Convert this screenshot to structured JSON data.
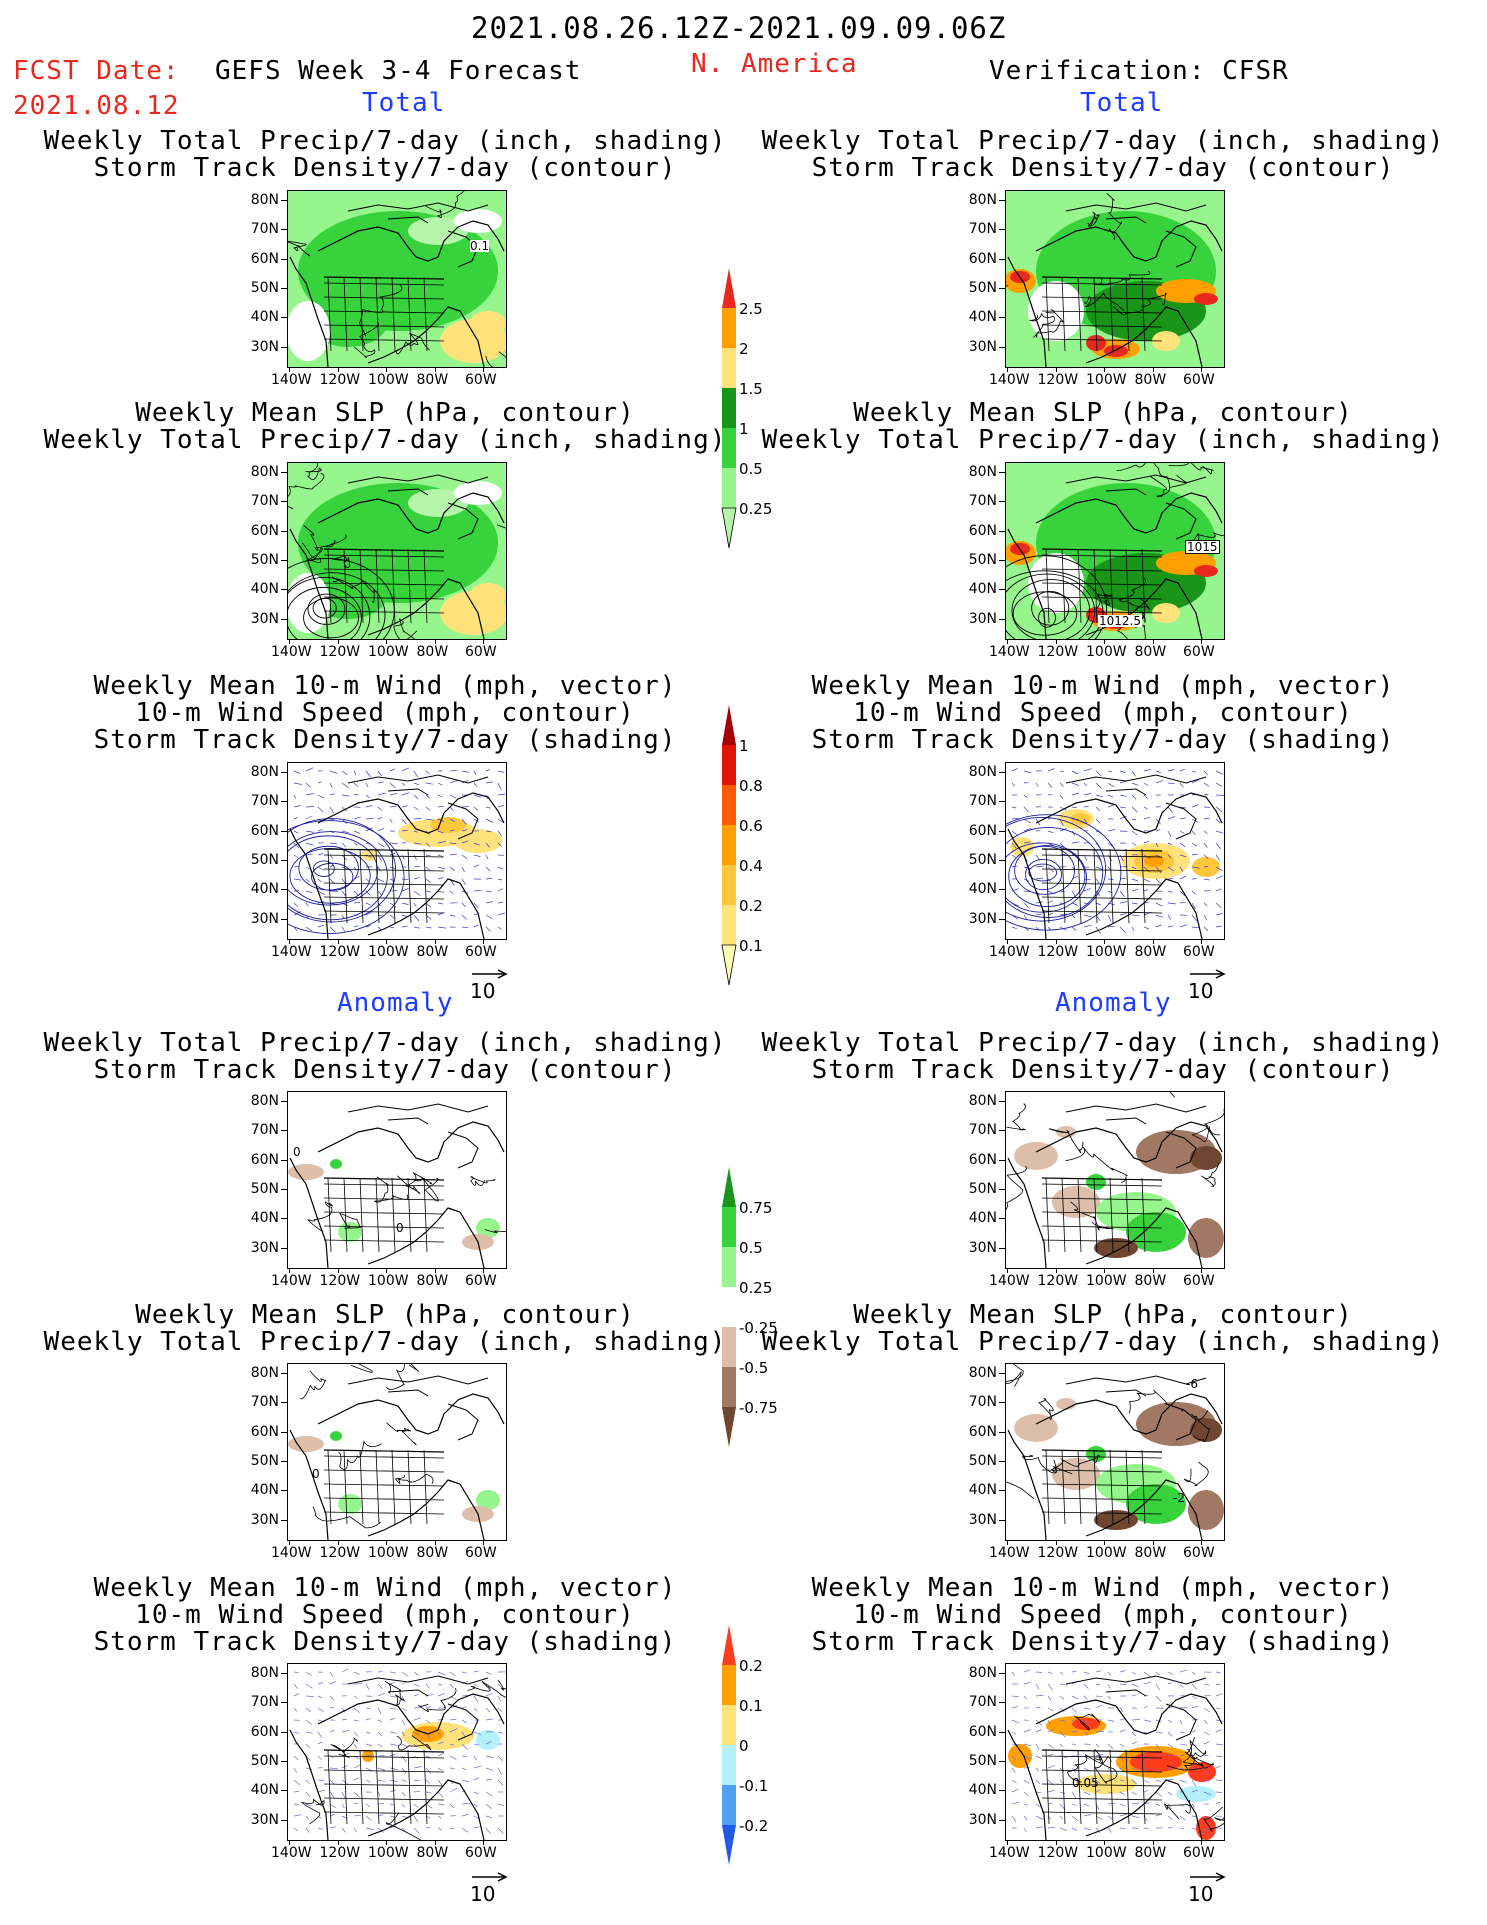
{
  "header": {
    "date_range": "2021.08.26.12Z-2021.09.09.06Z",
    "fcst_label": "FCST Date:",
    "fcst_date": "2021.08.12",
    "forecast_title": "GEFS Week 3-4 Forecast",
    "region": "N. America",
    "verification": "Verification: CFSR"
  },
  "sections": {
    "total": "Total",
    "anomaly": "Anomaly"
  },
  "panel_titles": {
    "precip_storm": [
      "Weekly Total Precip/7-day (inch, shading)",
      "Storm Track Density/7-day (contour)"
    ],
    "slp_precip": [
      "Weekly Mean SLP (hPa, contour)",
      "Weekly Total Precip/7-day (inch, shading)"
    ],
    "wind_storm": [
      "Weekly Mean 10-m Wind (mph, vector)",
      "10-m Wind Speed (mph, contour)",
      "Storm Track Density/7-day (shading)"
    ]
  },
  "axes": {
    "lat_labels": [
      "80N",
      "70N",
      "60N",
      "50N",
      "40N",
      "30N"
    ],
    "lon_labels": [
      "140W",
      "120W",
      "100W",
      "80W",
      "60W"
    ]
  },
  "vector_ref": "10",
  "contour_labels": {
    "fcst_precip_total": "0.1",
    "cfsr_slp_a": "1015",
    "cfsr_slp_b": "1012.5",
    "anom_zero": "0",
    "anom_neg": "-2",
    "anom_six": "-6",
    "anom_wind": "0.05"
  },
  "colorbars": {
    "precip_total": {
      "labels": [
        "2.5",
        "2",
        "1.5",
        "1",
        "0.5",
        "0.25"
      ],
      "colors": [
        "#e8281e",
        "#ffa000",
        "#ffe27a",
        "#199619",
        "#37d23c",
        "#96f58c",
        "#b4f5aa"
      ]
    },
    "storm_total": {
      "labels": [
        "1",
        "0.8",
        "0.6",
        "0.4",
        "0.2",
        "0.1"
      ],
      "colors": [
        "#a50000",
        "#e11400",
        "#ff5a00",
        "#ffa000",
        "#ffc83c",
        "#ffe27a",
        "#ffffb4"
      ]
    },
    "precip_anom": {
      "labels": [
        "0.75",
        "0.5",
        "0.25",
        "-0.25",
        "-0.5",
        "-0.75"
      ],
      "colors": [
        "#199619",
        "#37d23c",
        "#96f58c",
        "#ffffff",
        "#dcbeaa",
        "#a07864",
        "#6e4632"
      ]
    },
    "storm_anom": {
      "labels": [
        "0.2",
        "0.1",
        "0",
        "-0.1",
        "-0.2"
      ],
      "colors": [
        "#ff3c1e",
        "#ffa000",
        "#ffe27a",
        "#b4f0fa",
        "#50a0f0",
        "#1e5ae6"
      ]
    }
  }
}
